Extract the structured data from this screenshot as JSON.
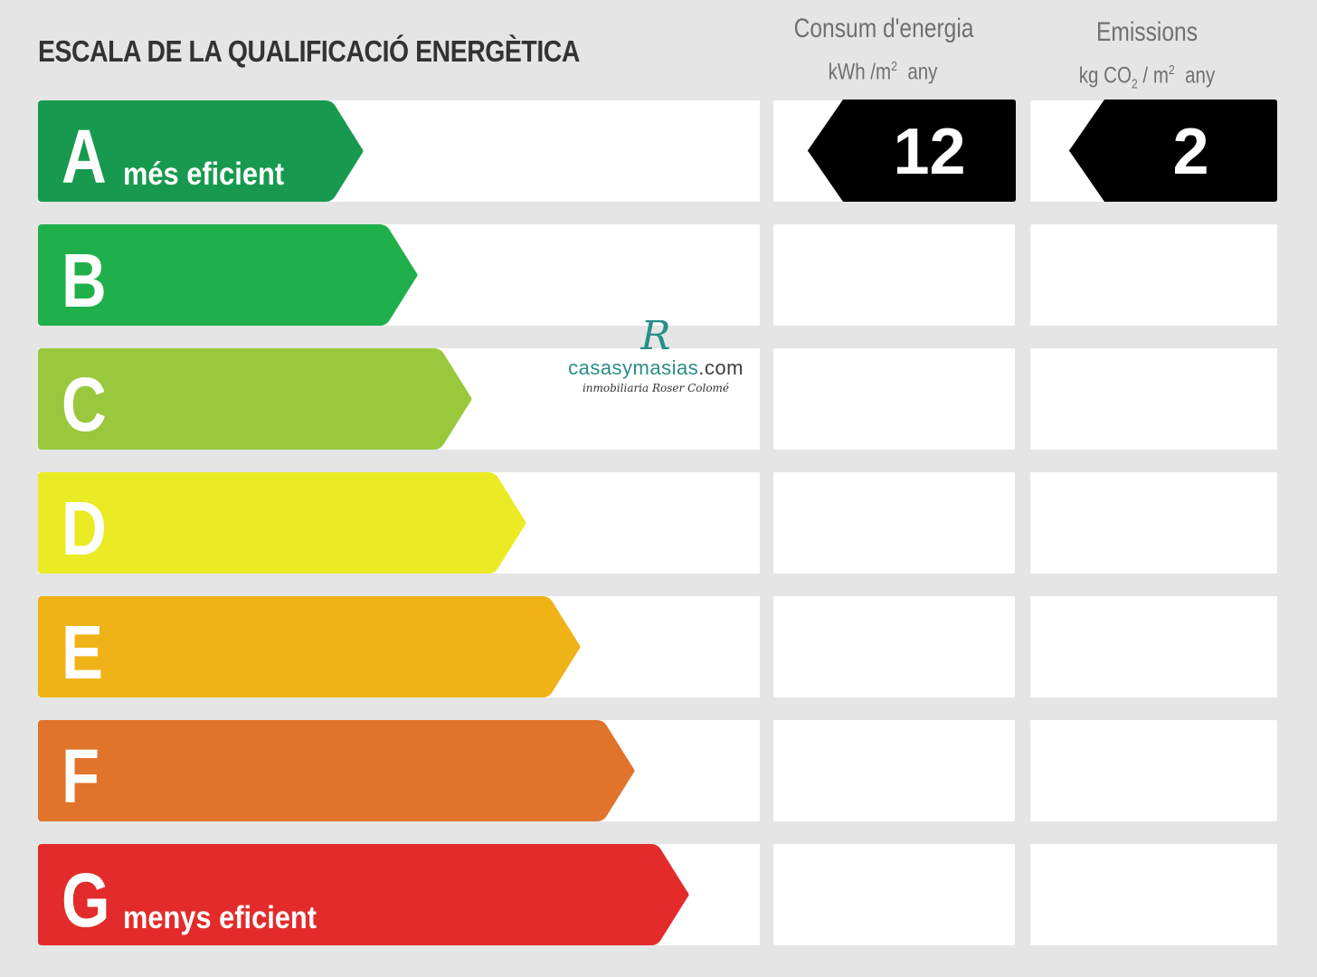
{
  "title": "ESCALA DE LA QUALIFICACIÓ ENERGÈTICA",
  "columns": {
    "energy": {
      "title": "Consum d'energia",
      "unit_prefix": "kWh /m",
      "unit_exp": "2",
      "unit_suffix": "any"
    },
    "emissions": {
      "title": "Emissions",
      "unit_prefix": "kg CO",
      "unit_sub": "2",
      "unit_mid": " / m",
      "unit_exp": "2",
      "unit_suffix": "any"
    }
  },
  "classes": [
    {
      "letter": "A",
      "label": "més eficient",
      "color": "#179a4f"
    },
    {
      "letter": "B",
      "label": "",
      "color": "#20b04b"
    },
    {
      "letter": "C",
      "label": "",
      "color": "#9ac83c"
    },
    {
      "letter": "D",
      "label": "",
      "color": "#eaeb25"
    },
    {
      "letter": "E",
      "label": "",
      "color": "#efb318"
    },
    {
      "letter": "F",
      "label": "",
      "color": "#e0742a"
    },
    {
      "letter": "G",
      "label": "menys eficient",
      "color": "#e32b2b"
    }
  ],
  "rating": {
    "energy": {
      "value": "12",
      "class": "A"
    },
    "emissions": {
      "value": "2",
      "class": "A"
    },
    "indicator_color": "#000000"
  },
  "watermark": {
    "monogram": "R",
    "brand": "casasymasias",
    "domain": ".com",
    "tagline": "inmobiliaria Roser Colomé"
  }
}
